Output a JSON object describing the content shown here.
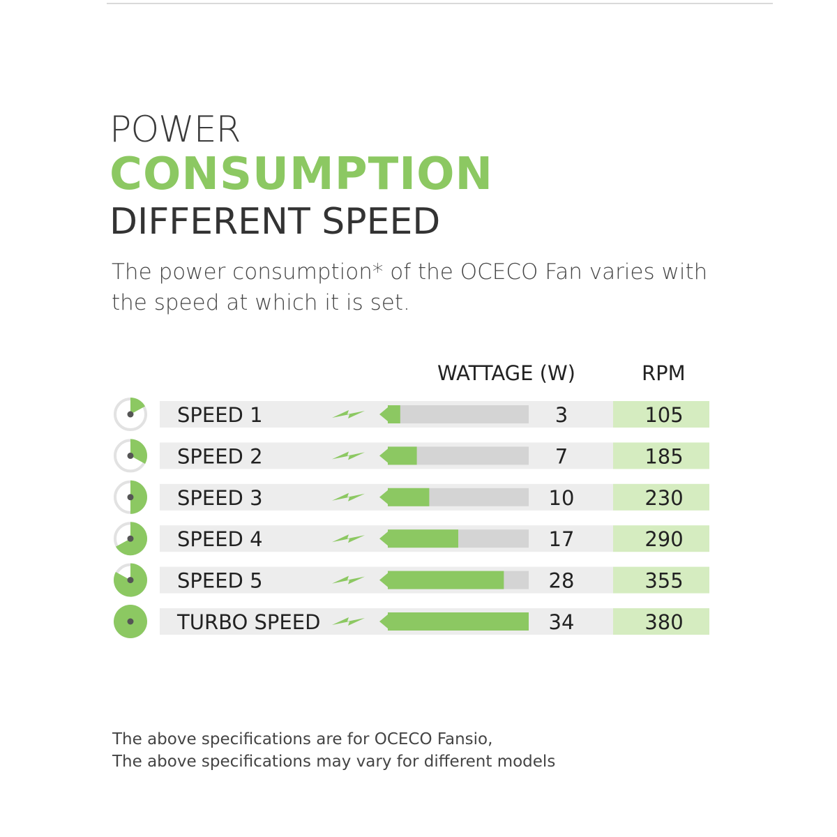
{
  "header": {
    "line1": "POWER",
    "line2": "CONSUMPTION",
    "line3": "DIFFERENT SPEED"
  },
  "intro": {
    "line1": "The power consumption* of the OCECO Fan varies with",
    "line2": "the speed at which it is set."
  },
  "columns": {
    "wattage": "WATTAGE (W)",
    "rpm": "RPM"
  },
  "footer": {
    "line1": "The above specifications are for OCECO Fansio,",
    "line2": "The above specifications may vary for different models"
  },
  "colors": {
    "accent": "#8cc862",
    "bar_track": "#d4d4d4",
    "row_band": "#ededed",
    "rpm_bg": "#d5ecc0",
    "dial_ring": "#e2e2e2",
    "dial_center": "#555555"
  },
  "icons": [
    "lightning-bolt-icon",
    "arrow-left-icon",
    "speed-dial-icon"
  ],
  "chart_data": {
    "type": "bar",
    "orientation": "horizontal",
    "categories": [
      "SPEED 1",
      "SPEED 2",
      "SPEED 3",
      "SPEED 4",
      "SPEED 5",
      "TURBO SPEED"
    ],
    "series": [
      {
        "name": "WATTAGE (W)",
        "values": [
          3,
          7,
          10,
          17,
          28,
          34
        ]
      },
      {
        "name": "RPM",
        "values": [
          105,
          185,
          230,
          290,
          355,
          380
        ]
      }
    ],
    "xlim": [
      0,
      34
    ],
    "dial_fill_fraction": [
      0.17,
      0.33,
      0.5,
      0.67,
      0.83,
      1.0
    ]
  }
}
